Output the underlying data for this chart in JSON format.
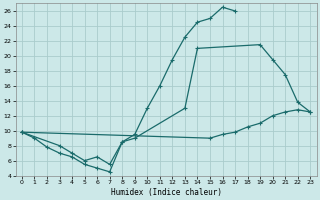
{
  "xlabel": "Humidex (Indice chaleur)",
  "bg_color": "#cce8e8",
  "grid_color": "#aacccc",
  "line_color": "#1a6b6b",
  "xlim": [
    -0.5,
    23.5
  ],
  "ylim": [
    4,
    27
  ],
  "yticks": [
    4,
    6,
    8,
    10,
    12,
    14,
    16,
    18,
    20,
    22,
    24,
    26
  ],
  "xticks": [
    0,
    1,
    2,
    3,
    4,
    5,
    6,
    7,
    8,
    9,
    10,
    11,
    12,
    13,
    14,
    15,
    16,
    17,
    18,
    19,
    20,
    21,
    22,
    23
  ],
  "line1_x": [
    0,
    1,
    2,
    3,
    4,
    5,
    6,
    7,
    8,
    9,
    10,
    11,
    12,
    13,
    14,
    15,
    16,
    17
  ],
  "line1_y": [
    9.8,
    9.0,
    7.8,
    7.0,
    6.5,
    5.5,
    5.0,
    4.5,
    8.5,
    9.5,
    13.0,
    16.0,
    19.5,
    22.5,
    24.5,
    25.0,
    26.5,
    26.0
  ],
  "line2_x": [
    0,
    3,
    4,
    5,
    6,
    7,
    8,
    9,
    13,
    14,
    19,
    20,
    21,
    22,
    23
  ],
  "line2_y": [
    9.8,
    8.0,
    7.0,
    6.0,
    6.5,
    5.5,
    8.5,
    9.0,
    13.0,
    21.0,
    21.5,
    19.5,
    17.5,
    13.8,
    12.5
  ],
  "line3_x": [
    0,
    15,
    16,
    17,
    18,
    19,
    20,
    21,
    22,
    23
  ],
  "line3_y": [
    9.8,
    9.0,
    9.5,
    9.8,
    10.5,
    11.0,
    12.0,
    12.5,
    12.8,
    12.5
  ]
}
